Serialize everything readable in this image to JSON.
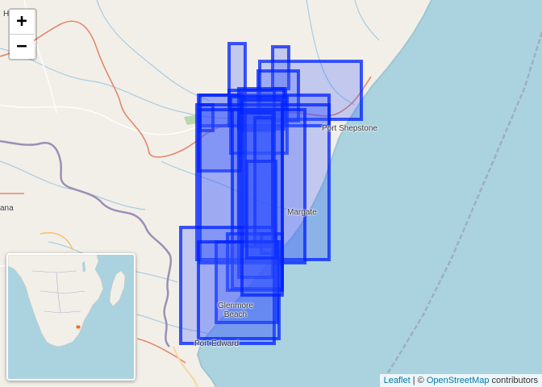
{
  "map": {
    "controls": {
      "zoom_in": "+",
      "zoom_out": "−"
    },
    "places": {
      "top_left": "H",
      "port_shepstone": "Port Shepstone",
      "margate": "Margate",
      "glenmore_beach_line1": "Glenmore",
      "glenmore_beach_line2": "Beach",
      "port_edward": "Port Edward",
      "left_fragment": "ana"
    },
    "overlay": {
      "fill_color": "#3355ff",
      "stroke_color": "#0022ff"
    },
    "attribution": {
      "leaflet": "Leaflet",
      "separator": " | © ",
      "osm": "OpenStreetMap",
      "contributors": " contributors"
    }
  }
}
